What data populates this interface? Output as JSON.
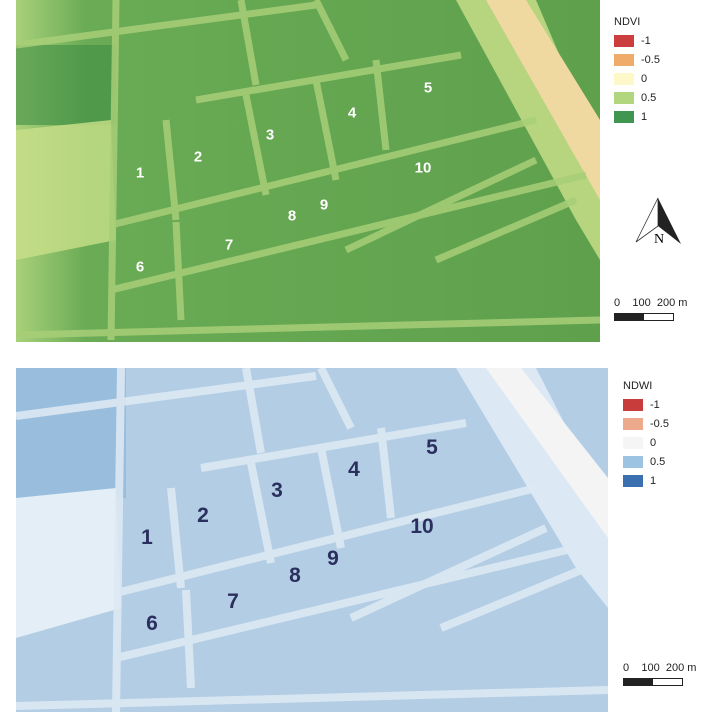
{
  "ndvi": {
    "legend_title": "NDVI",
    "legend": [
      {
        "label": "-1",
        "color": "#cc3d3d"
      },
      {
        "label": "-0.5",
        "color": "#efab6c"
      },
      {
        "label": "0",
        "color": "#fdf8c8"
      },
      {
        "label": "0.5",
        "color": "#b1d67d"
      },
      {
        "label": "1",
        "color": "#3f9650"
      }
    ],
    "field_labels": [
      "1",
      "2",
      "3",
      "4",
      "5",
      "6",
      "7",
      "8",
      "9",
      "10"
    ],
    "north_label": "N",
    "scale": {
      "t0": "0",
      "t1": "100",
      "t2": "200 m"
    }
  },
  "ndwi": {
    "legend_title": "NDWI",
    "legend": [
      {
        "label": "-1",
        "color": "#c83c3c"
      },
      {
        "label": "-0.5",
        "color": "#eca98b"
      },
      {
        "label": "0",
        "color": "#f5f5f5"
      },
      {
        "label": "0.5",
        "color": "#9cc3e2"
      },
      {
        "label": "1",
        "color": "#3a70b0"
      }
    ],
    "field_labels": [
      "1",
      "2",
      "3",
      "4",
      "5",
      "6",
      "7",
      "8",
      "9",
      "10"
    ],
    "scale": {
      "t0": "0",
      "t1": "100",
      "t2": "200 m"
    }
  }
}
